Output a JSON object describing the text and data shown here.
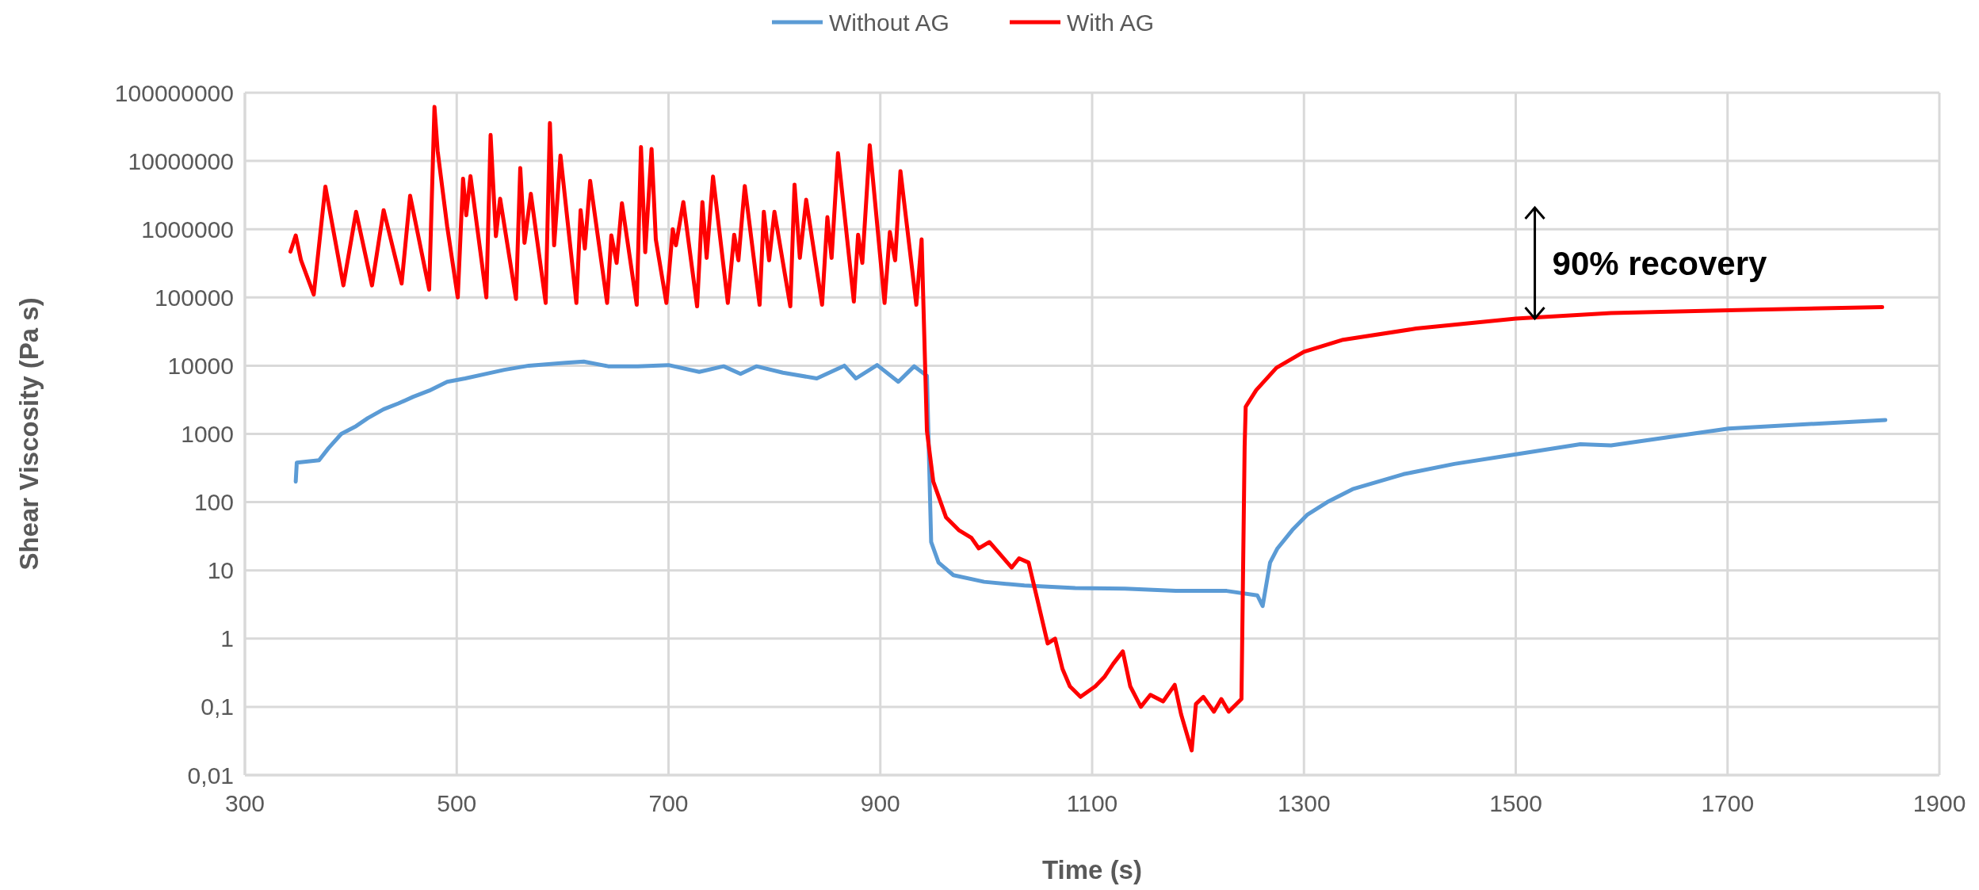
{
  "chart_data": {
    "type": "line",
    "xlabel": "Time (s)",
    "ylabel": "Shear Viscosity (Pa s)",
    "log": "y",
    "grid": true,
    "legend": "top",
    "marker": "none",
    "line_style": "solid",
    "xlim": [
      300,
      1900
    ],
    "xticks": [
      300,
      500,
      700,
      900,
      1100,
      1300,
      1500,
      1700,
      1900
    ],
    "ylim": [
      0.01,
      100000000
    ],
    "yticks": [
      {
        "value": 0.01,
        "label": "0,01"
      },
      {
        "value": 0.1,
        "label": "0,1"
      },
      1,
      10,
      100,
      1000,
      10000,
      100000,
      1000000,
      10000000,
      100000000
    ],
    "annotations": [
      {
        "text": "90% recovery",
        "x": 1518,
        "y": 49000
      }
    ],
    "series": [
      {
        "name": "Without AG",
        "color": "#5b9bd5",
        "x": [
          348,
          349,
          370,
          379,
          391,
          405,
          416,
          431,
          445,
          459,
          474,
          491,
          508,
          528,
          545,
          568,
          603,
          620,
          643,
          671,
          700,
          729,
          752,
          768,
          783,
          808,
          840,
          866,
          877,
          897,
          917,
          932,
          944,
          948,
          955,
          969,
          998,
          1036,
          1084,
          1131,
          1179,
          1227,
          1256,
          1261,
          1268,
          1275,
          1289,
          1303,
          1322,
          1346,
          1394,
          1442,
          1499,
          1561,
          1590,
          1701,
          1849
        ],
        "values": [
          200,
          380,
          410,
          620,
          1000,
          1300,
          1700,
          2300,
          2800,
          3500,
          4300,
          5800,
          6500,
          7600,
          8700,
          10000,
          11000,
          11500,
          9800,
          9800,
          10200,
          8100,
          9800,
          7600,
          9800,
          7900,
          6500,
          10000,
          6500,
          10200,
          5800,
          9800,
          7100,
          26,
          13,
          8.5,
          6.8,
          6,
          5.5,
          5.4,
          5,
          5,
          4.3,
          3,
          13,
          21,
          39,
          65,
          100,
          155,
          257,
          363,
          500,
          708,
          680,
          1200,
          1600
        ]
      },
      {
        "name": "With AG",
        "color": "#ff0000",
        "x": [
          343,
          348,
          353,
          365,
          376,
          393,
          405,
          420,
          431,
          448,
          456,
          474,
          479,
          482,
          491,
          501,
          506,
          509,
          513,
          528,
          532,
          537,
          541,
          556,
          560,
          564,
          570,
          584,
          588,
          592,
          598,
          613,
          617,
          621,
          626,
          642,
          646,
          651,
          656,
          670,
          674,
          678,
          684,
          688,
          698,
          704,
          707,
          714,
          727,
          732,
          736,
          742,
          756,
          762,
          766,
          772,
          786,
          790,
          795,
          800,
          815,
          819,
          824,
          830,
          845,
          850,
          854,
          860,
          875,
          879,
          883,
          890,
          904,
          909,
          914,
          919,
          934,
          939,
          944,
          950,
          962,
          974,
          986,
          993,
          1003,
          1012,
          1024,
          1031,
          1040,
          1048,
          1058,
          1065,
          1072,
          1079,
          1089,
          1103,
          1112,
          1120,
          1129,
          1136,
          1146,
          1155,
          1167,
          1178,
          1184,
          1194,
          1198,
          1205,
          1215,
          1222,
          1229,
          1241,
          1244,
          1245,
          1255,
          1274,
          1300,
          1337,
          1406,
          1500,
          1590,
          1701,
          1846
        ],
        "values": [
          470000,
          810000,
          350000,
          110000,
          4200000,
          150000,
          1800000,
          150000,
          1900000,
          160000,
          3100000,
          130000,
          62000000,
          14000000,
          1100000,
          100000,
          5500000,
          1600000,
          6000000,
          100000,
          24000000,
          790000,
          2800000,
          95000,
          7900000,
          630000,
          3300000,
          83000,
          36000000,
          580000,
          12000000,
          83000,
          1900000,
          520000,
          5100000,
          83000,
          810000,
          320000,
          2400000,
          78000,
          16000000,
          460000,
          15000000,
          710000,
          83000,
          1000000,
          580000,
          2500000,
          74000,
          2500000,
          380000,
          5900000,
          83000,
          830000,
          350000,
          4300000,
          78000,
          1800000,
          350000,
          1800000,
          74000,
          4500000,
          380000,
          2700000,
          78000,
          1500000,
          380000,
          13000000,
          87000,
          830000,
          320000,
          17000000,
          83000,
          910000,
          350000,
          7100000,
          78000,
          710000,
          1100,
          200,
          60,
          39,
          30,
          21,
          26,
          18,
          11,
          15,
          13,
          3.9,
          0.85,
          1,
          0.36,
          0.2,
          0.14,
          0.2,
          0.28,
          0.43,
          0.65,
          0.2,
          0.1,
          0.15,
          0.12,
          0.21,
          0.078,
          0.023,
          0.11,
          0.14,
          0.085,
          0.13,
          0.085,
          0.13,
          650,
          2500,
          4400,
          9300,
          16000,
          24000,
          35000,
          49000,
          59000,
          65000,
          72000
        ]
      }
    ]
  }
}
